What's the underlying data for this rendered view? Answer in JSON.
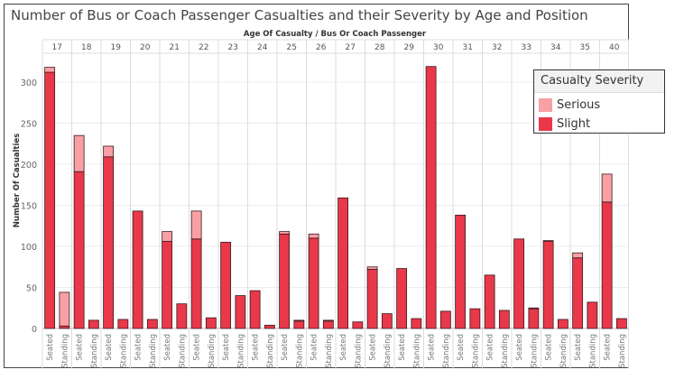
{
  "title": "Number of Bus or Coach Passenger Casualties and their Severity by Age and Position",
  "legend": {
    "title": "Casualty Severity",
    "items": [
      {
        "label": "Serious",
        "color": "#f8a0a6"
      },
      {
        "label": "Slight",
        "color": "#e8384a"
      }
    ]
  },
  "chart_data": {
    "type": "bar",
    "stacked": true,
    "title": "Number of Bus or Coach Passenger Casualties and their Severity by Age and Position",
    "column_header": "Age Of Casualty  / Bus Or Coach Passenger",
    "ylabel": "Number Of Casualties",
    "ylim": [
      0,
      330
    ],
    "yticks": [
      0,
      50,
      100,
      150,
      200,
      250,
      300
    ],
    "grid": true,
    "legend_position": "right",
    "ages": [
      "17",
      "18",
      "19",
      "20",
      "21",
      "22",
      "23",
      "24",
      "25",
      "26",
      "27",
      "28",
      "29",
      "30",
      "31",
      "32",
      "33",
      "34",
      "35",
      "40"
    ],
    "positions": [
      "Seated",
      "Standing"
    ],
    "series": [
      {
        "name": "Slight",
        "color": "#e8384a",
        "values": [
          312,
          3,
          191,
          10,
          209,
          11,
          143,
          11,
          106,
          30,
          109,
          13,
          105,
          40,
          46,
          4,
          115,
          9,
          110,
          9,
          159,
          8,
          72,
          18,
          73,
          12,
          319,
          21,
          138,
          24,
          65,
          22,
          109,
          24,
          106,
          11,
          86,
          32,
          154,
          12
        ]
      },
      {
        "name": "Serious",
        "color": "#f8a0a6",
        "values": [
          6,
          41,
          44,
          0,
          13,
          0,
          0,
          0,
          12,
          0,
          34,
          0,
          0,
          0,
          0,
          0,
          3,
          1,
          5,
          1,
          0,
          0,
          3,
          0,
          0,
          0,
          0,
          0,
          0,
          0,
          0,
          0,
          0,
          1,
          1,
          0,
          6,
          0,
          34,
          0
        ]
      }
    ]
  }
}
